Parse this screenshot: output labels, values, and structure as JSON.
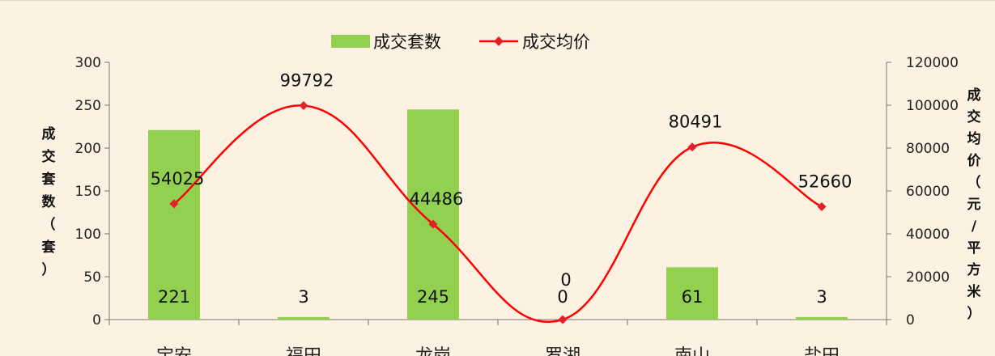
{
  "chart_data": {
    "type": "bar+line",
    "categories": [
      "宝安",
      "福田",
      "龙岗",
      "罗湖",
      "南山",
      "盐田"
    ],
    "series": [
      {
        "name": "成交套数",
        "type": "bar",
        "axis": "left",
        "values": [
          221,
          3,
          245,
          0,
          61,
          3
        ],
        "color": "#92d050"
      },
      {
        "name": "成交均价",
        "type": "line",
        "axis": "right",
        "values": [
          54025,
          99792,
          44486,
          0,
          80491,
          52660
        ],
        "color": "#ff0000",
        "marker_color": "#e32026"
      }
    ],
    "ylabel_left": "成交套数（套）",
    "ylabel_right": "成交均价（元/平方米）",
    "ylim_left": [
      0,
      300
    ],
    "yticks_left": [
      0,
      50,
      100,
      150,
      200,
      250,
      300
    ],
    "ylim_right": [
      0,
      120000
    ],
    "yticks_right": [
      0,
      20000,
      40000,
      60000,
      80000,
      100000,
      120000
    ],
    "legend_position": "top-center",
    "grid": false,
    "background": "#fdf1e2"
  }
}
